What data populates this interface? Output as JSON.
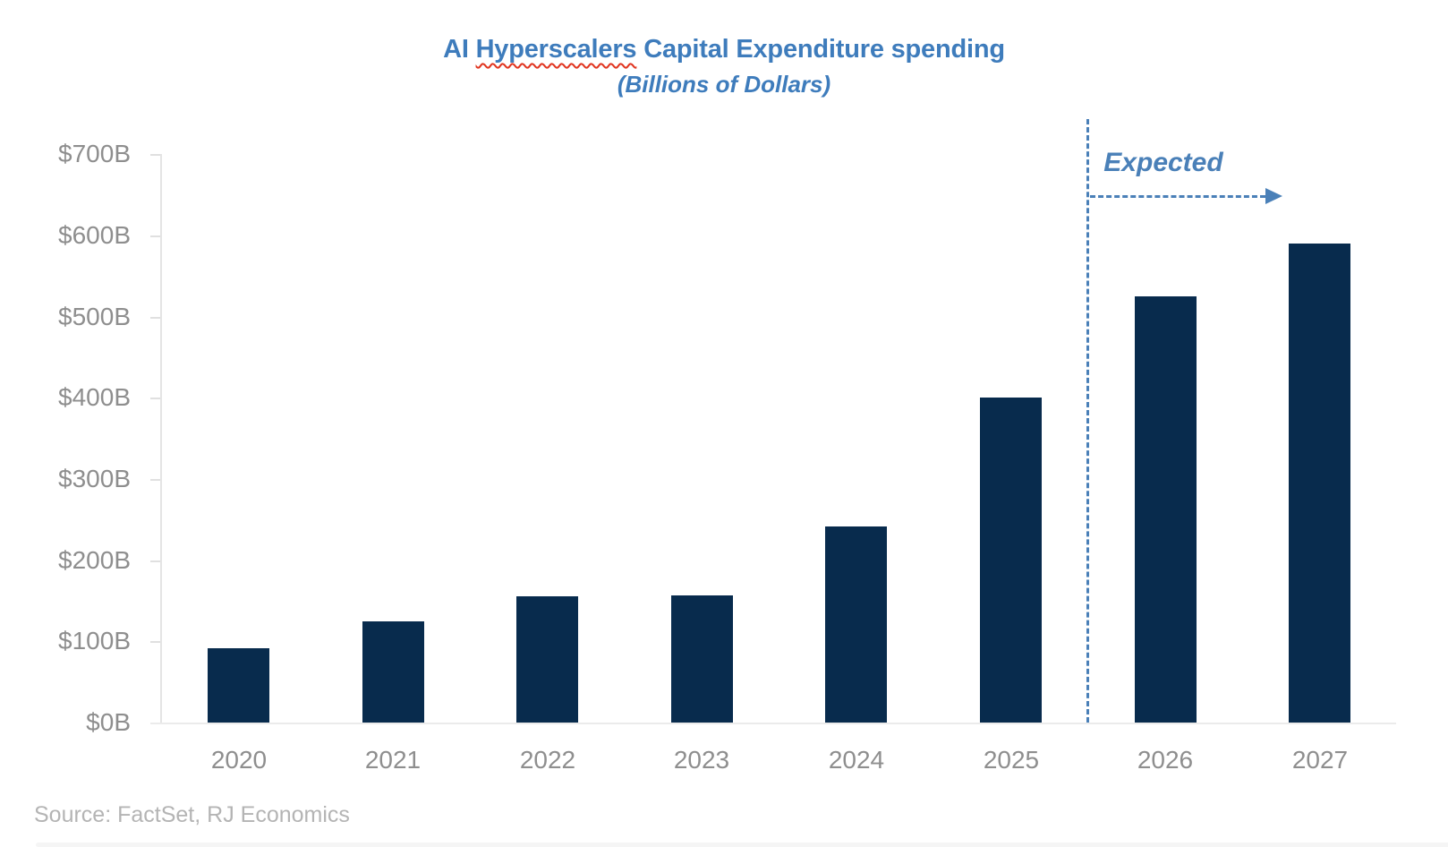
{
  "chart_data": {
    "type": "bar",
    "title": "AI Hyperscalers Capital Expenditure spending",
    "title_parts": {
      "prefix": "AI ",
      "misspelled": "Hyperscalers",
      "suffix": " Capital Expenditure spending"
    },
    "subtitle": "(Billions of Dollars)",
    "categories": [
      "2020",
      "2021",
      "2022",
      "2023",
      "2024",
      "2025",
      "2026",
      "2027"
    ],
    "values": [
      92,
      125,
      155,
      157,
      242,
      400,
      525,
      590
    ],
    "value_unit": "billions of dollars",
    "xlabel": "",
    "ylabel": "",
    "ylim": [
      0,
      700
    ],
    "y_tick_step": 100,
    "y_tick_labels": [
      "$0B",
      "$100B",
      "$200B",
      "$300B",
      "$400B",
      "$500B",
      "$600B",
      "$700B"
    ],
    "gridlines": false,
    "legend": "none",
    "annotation": {
      "label": "Expected",
      "applies_to": [
        "2026",
        "2027"
      ],
      "divider_between": [
        "2025",
        "2026"
      ],
      "arrow_direction": "right"
    },
    "source": "Source: FactSet, RJ Economics",
    "colors": {
      "bar": "#082b4d",
      "title_text": "#3e7cbc",
      "annotation": "#4a80b8",
      "axis_text": "#8e8e8e",
      "axis_line": "#e4e4e4",
      "source_text": "#b4b4b4",
      "misspelling_underline": "#e0341f"
    }
  }
}
